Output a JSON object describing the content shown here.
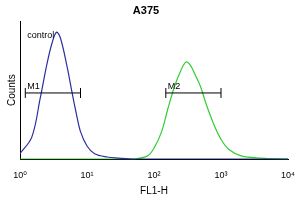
{
  "chart_data": {
    "type": "line",
    "title": "A375",
    "x_label": "FL1-H",
    "y_label": "Counts",
    "log": "x",
    "grid": false,
    "tick_labels": "x",
    "x": [
      1,
      1.5,
      2,
      2.5,
      3,
      3.5,
      4,
      5,
      6,
      7,
      8,
      10,
      13,
      20,
      30,
      50,
      80,
      100,
      130,
      160,
      200,
      250,
      300,
      350,
      400,
      500,
      600,
      800,
      1000,
      1300,
      2000,
      4000,
      10000
    ],
    "series": [
      {
        "name": "control",
        "color": "#2b2f9e",
        "values": [
          5,
          20,
          55,
          85,
          105,
          115,
          110,
          85,
          60,
          40,
          25,
          12,
          5,
          2,
          1,
          0,
          0,
          0,
          0,
          0,
          0,
          0,
          0,
          0,
          0,
          0,
          0,
          0,
          0,
          0,
          0,
          0,
          0
        ]
      },
      {
        "name": "A375",
        "color": "#33cc33",
        "values": [
          0,
          0,
          0,
          0,
          0,
          0,
          0,
          0,
          0,
          0,
          0,
          0,
          0,
          0,
          0,
          0,
          3,
          10,
          25,
          45,
          65,
          80,
          88,
          85,
          78,
          65,
          50,
          30,
          18,
          9,
          3,
          1,
          0
        ]
      }
    ],
    "xlim": [
      1,
      10000
    ],
    "xticks": [
      {
        "value": 1,
        "label": "10⁰"
      },
      {
        "value": 10,
        "label": "10¹"
      },
      {
        "value": 100,
        "label": "10²"
      },
      {
        "value": 1000,
        "label": "10³"
      },
      {
        "value": 10000,
        "label": "10⁴"
      }
    ],
    "ylim": [
      0,
      125
    ],
    "annotations": [
      {
        "text": "control",
        "x": 1.2,
        "y": 112
      }
    ],
    "gates": [
      {
        "label": "M1",
        "x": [
          1.2,
          8
        ],
        "y": 60
      },
      {
        "label": "M2",
        "x": [
          150,
          1000
        ],
        "y": 60
      }
    ]
  }
}
